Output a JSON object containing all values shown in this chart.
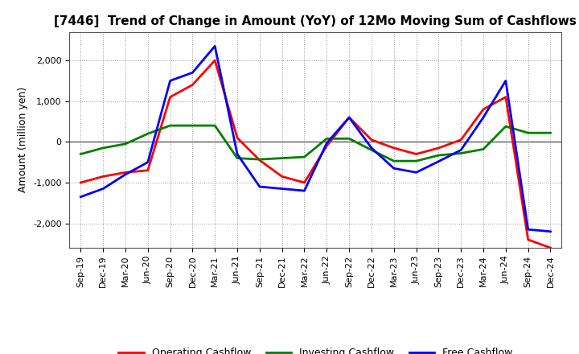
{
  "title": "[7446]  Trend of Change in Amount (YoY) of 12Mo Moving Sum of Cashflows",
  "ylabel": "Amount (million yen)",
  "x_labels": [
    "Sep-19",
    "Dec-19",
    "Mar-20",
    "Jun-20",
    "Sep-20",
    "Dec-20",
    "Mar-21",
    "Jun-21",
    "Sep-21",
    "Dec-21",
    "Mar-22",
    "Jun-22",
    "Sep-22",
    "Dec-22",
    "Mar-23",
    "Jun-23",
    "Sep-23",
    "Dec-23",
    "Mar-24",
    "Jun-24",
    "Sep-24",
    "Dec-24"
  ],
  "operating": [
    -1000,
    -850,
    -750,
    -700,
    1100,
    1400,
    2000,
    100,
    -450,
    -850,
    -1000,
    -100,
    600,
    50,
    -150,
    -300,
    -150,
    50,
    800,
    1100,
    -2400,
    -2600
  ],
  "investing": [
    -300,
    -150,
    -50,
    200,
    400,
    400,
    400,
    -400,
    -430,
    -400,
    -370,
    80,
    80,
    -200,
    -470,
    -470,
    -330,
    -280,
    -180,
    380,
    220,
    220
  ],
  "free": [
    -1350,
    -1150,
    -800,
    -500,
    1500,
    1700,
    2350,
    -300,
    -1100,
    -1150,
    -1200,
    -30,
    600,
    -150,
    -650,
    -750,
    -480,
    -200,
    600,
    1500,
    -2150,
    -2200
  ],
  "operating_color": "#ff0000",
  "investing_color": "#008000",
  "free_color": "#0000ff",
  "ylim": [
    -2600,
    2700
  ],
  "yticks": [
    -2000,
    -1000,
    0,
    1000,
    2000
  ],
  "background_color": "#ffffff",
  "grid_color": "#999999",
  "zero_line_color": "#333333",
  "title_fontsize": 11,
  "axis_label_fontsize": 9,
  "tick_fontsize": 8,
  "legend_fontsize": 9,
  "linewidth": 2.0
}
